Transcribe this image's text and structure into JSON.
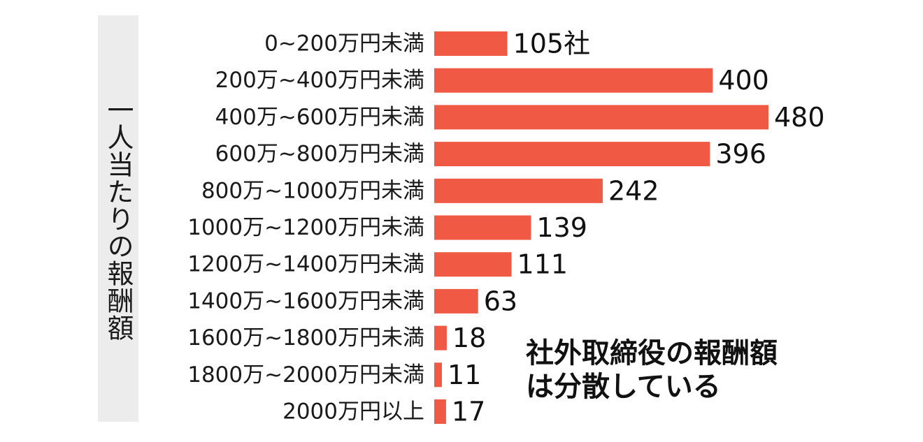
{
  "chart_data": {
    "type": "bar",
    "orientation": "horizontal",
    "ylabel": "一人当たりの報酬額",
    "annotation": [
      "社外取締役の報酬額",
      "は分散している"
    ],
    "categories": [
      "0~200万円未満",
      "200万~400万円未満",
      "400万~600万円未満",
      "600万~800万円未満",
      "800万~1000万円未満",
      "1000万~1200万円未満",
      "1200万~1400万円未満",
      "1400万~1600万円未満",
      "1600万~1800万円未満",
      "1800万~2000万円未満",
      "2000万円以上"
    ],
    "values": [
      105,
      400,
      480,
      396,
      242,
      139,
      111,
      63,
      18,
      11,
      17
    ],
    "value_labels": [
      "105社",
      "400",
      "480",
      "396",
      "242",
      "139",
      "111",
      "63",
      "18",
      "11",
      "17"
    ],
    "bar_color": "#f05a45",
    "xlim": [
      0,
      480
    ],
    "grid": false,
    "legend": "none"
  }
}
